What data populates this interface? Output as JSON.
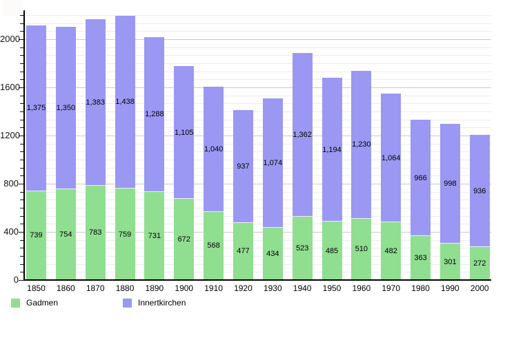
{
  "chart_data": {
    "type": "bar",
    "stacked": true,
    "title": "",
    "xlabel": "",
    "ylabel": "",
    "categories": [
      "1850",
      "1860",
      "1870",
      "1880",
      "1890",
      "1900",
      "1910",
      "1920",
      "1930",
      "1940",
      "1950",
      "1960",
      "1970",
      "1980",
      "1990",
      "2000"
    ],
    "series": [
      {
        "name": "Gadmen",
        "color": "#90de90",
        "values": [
          739,
          754,
          783,
          759,
          731,
          672,
          568,
          477,
          434,
          523,
          485,
          510,
          482,
          363,
          301,
          272
        ]
      },
      {
        "name": "Innertkirchen",
        "color": "#9a98f2",
        "values": [
          1375,
          1350,
          1383,
          1438,
          1288,
          1105,
          1040,
          937,
          1074,
          1362,
          1194,
          1230,
          1064,
          966,
          998,
          936
        ]
      }
    ],
    "y_ticks": [
      0,
      400,
      800,
      1200,
      1600,
      2000
    ],
    "ylim": [
      0,
      2240
    ],
    "grid": "horizontal",
    "legend_position": "bottom-left",
    "value_labels": "inside segments, thousands separated with commas"
  },
  "legend": {
    "items": [
      {
        "label": "Gadmen"
      },
      {
        "label": "Innertkirchen"
      }
    ]
  },
  "colors": {
    "gadmen": "#90de90",
    "innertkirchen": "#9a98f2",
    "grid_minor": "#e8edee",
    "grid_major": "#c5cacc",
    "axis": "#000000",
    "background": "#ffffff"
  }
}
